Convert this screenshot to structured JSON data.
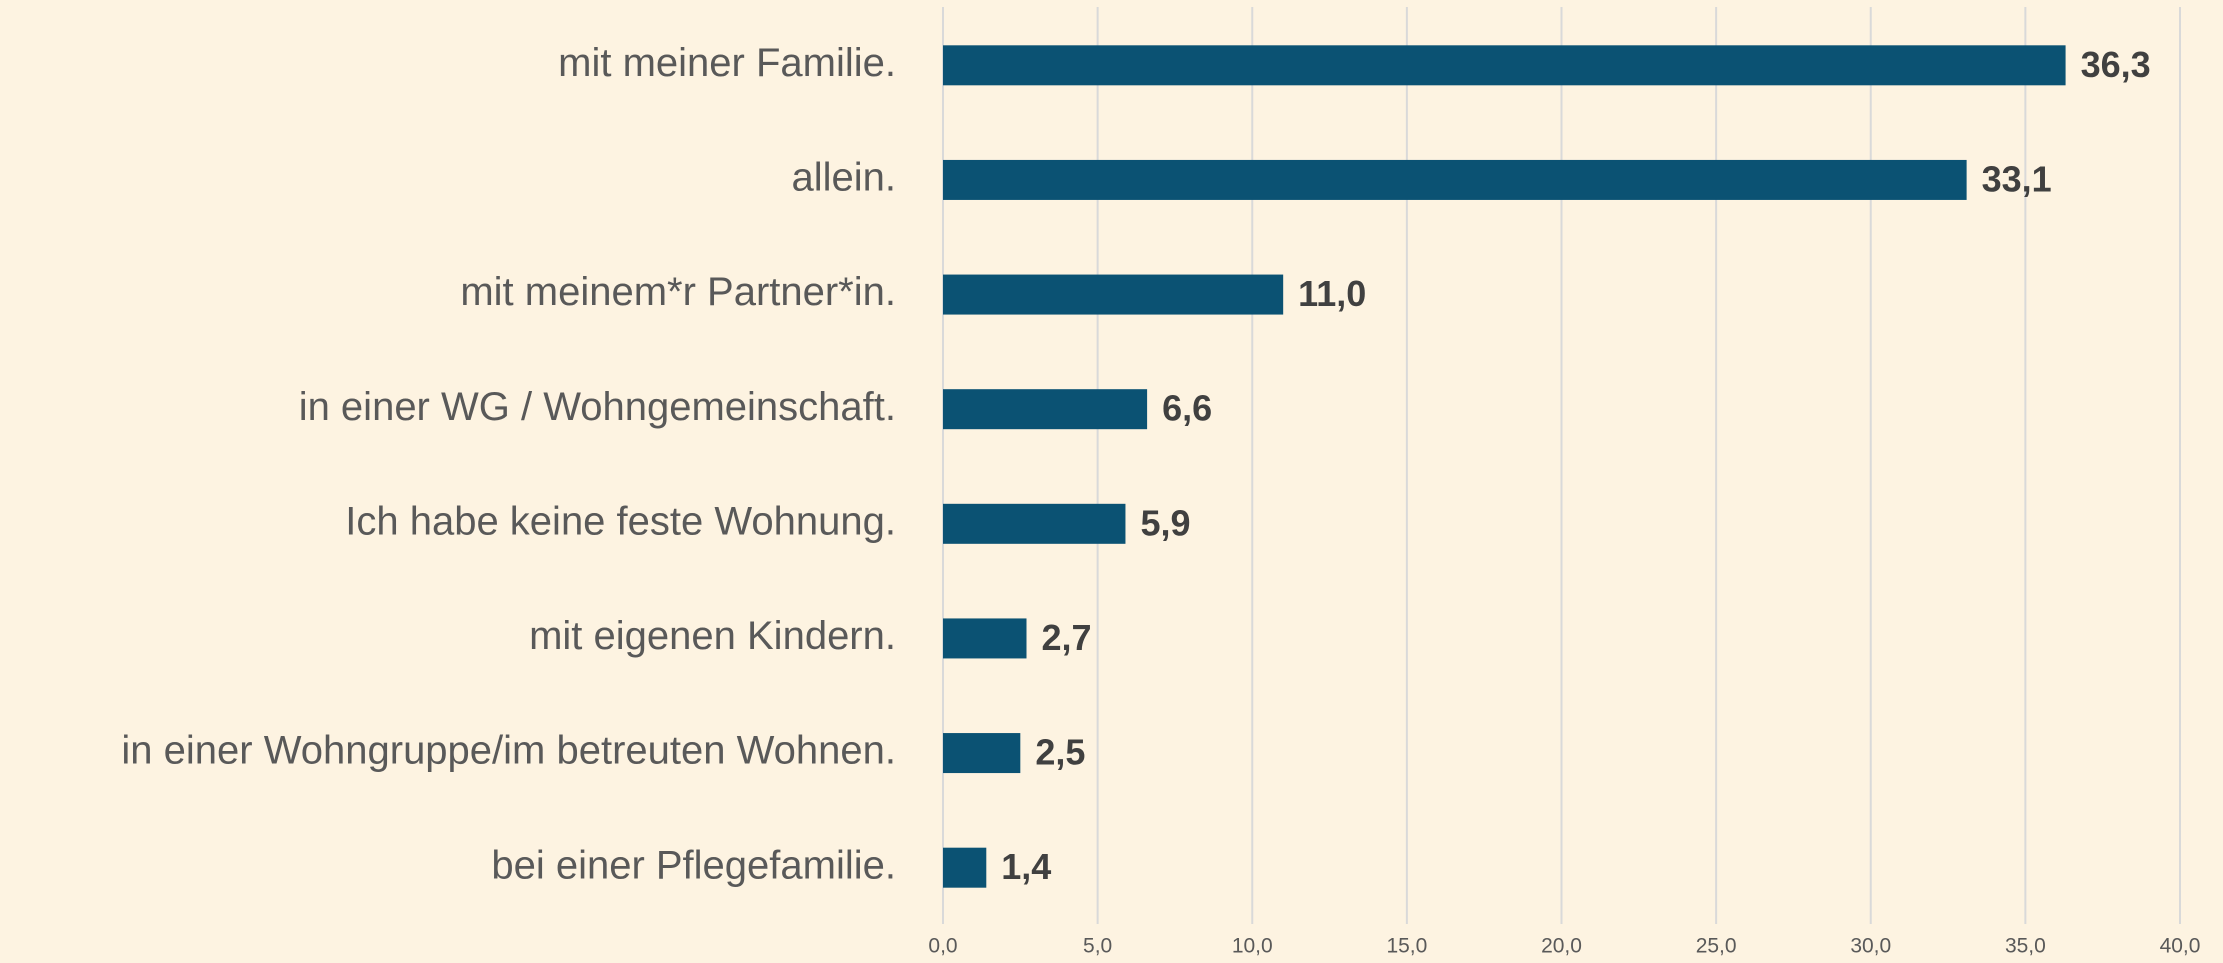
{
  "chart_data": {
    "type": "bar",
    "orientation": "horizontal",
    "categories": [
      "mit meiner Familie.",
      "allein.",
      "mit meinem*r Partner*in.",
      "in einer WG / Wohngemeinschaft.",
      "Ich habe keine feste Wohnung.",
      "mit eigenen Kindern.",
      "in einer Wohngruppe/im betreuten Wohnen.",
      "bei einer Pflegefamilie."
    ],
    "values": [
      36.3,
      33.1,
      11.0,
      6.6,
      5.9,
      2.7,
      2.5,
      1.4
    ],
    "value_labels": [
      "36,3",
      "33,1",
      "11,0",
      "6,6",
      "5,9",
      "2,7",
      "2,5",
      "1,4"
    ],
    "color": "#0b5273",
    "xlim": [
      0,
      40
    ],
    "xticks": [
      {
        "value": 0,
        "label": "0,0"
      },
      {
        "value": 5,
        "label": "5,0"
      },
      {
        "value": 10,
        "label": "10,0"
      },
      {
        "value": 15,
        "label": "15,0"
      },
      {
        "value": 20,
        "label": "20,0"
      },
      {
        "value": 25,
        "label": "25,0"
      },
      {
        "value": 30,
        "label": "30,0"
      },
      {
        "value": 35,
        "label": "35,0"
      },
      {
        "value": 40,
        "label": "40,0"
      }
    ],
    "grid": true
  }
}
